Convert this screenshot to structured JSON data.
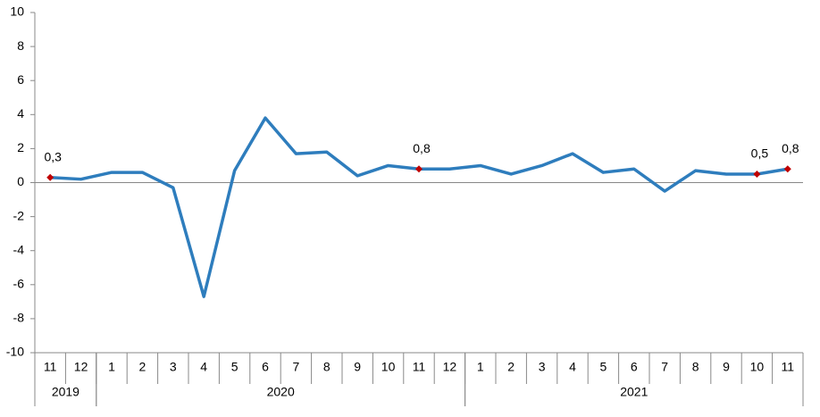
{
  "chart_data": {
    "type": "line",
    "categories": [
      "11",
      "12",
      "1",
      "2",
      "3",
      "4",
      "5",
      "6",
      "7",
      "8",
      "9",
      "10",
      "11",
      "12",
      "1",
      "2",
      "3",
      "4",
      "5",
      "6",
      "7",
      "8",
      "9",
      "10",
      "11"
    ],
    "year_groups": [
      {
        "label": "2019",
        "span": 2
      },
      {
        "label": "2020",
        "span": 12
      },
      {
        "label": "2021",
        "span": 11
      }
    ],
    "series": [
      {
        "color": "#2e7dbd",
        "marker_color": "#c00000",
        "values": [
          0.3,
          0.2,
          0.6,
          0.6,
          -0.3,
          -6.7,
          0.7,
          3.8,
          1.7,
          1.8,
          0.4,
          1.0,
          0.8,
          0.8,
          1.0,
          0.5,
          1.0,
          1.7,
          0.6,
          0.8,
          -0.5,
          0.7,
          0.5,
          0.5,
          0.8
        ],
        "value_labels": [
          "0,3",
          null,
          null,
          null,
          null,
          null,
          null,
          null,
          null,
          null,
          null,
          null,
          "0,8",
          null,
          null,
          null,
          null,
          null,
          null,
          null,
          null,
          null,
          null,
          "0,5",
          "0,8"
        ]
      }
    ],
    "ylim": [
      -10,
      10
    ],
    "yticks": [
      -10,
      -8,
      -6,
      -4,
      -2,
      0,
      2,
      4,
      6,
      8,
      10
    ]
  }
}
